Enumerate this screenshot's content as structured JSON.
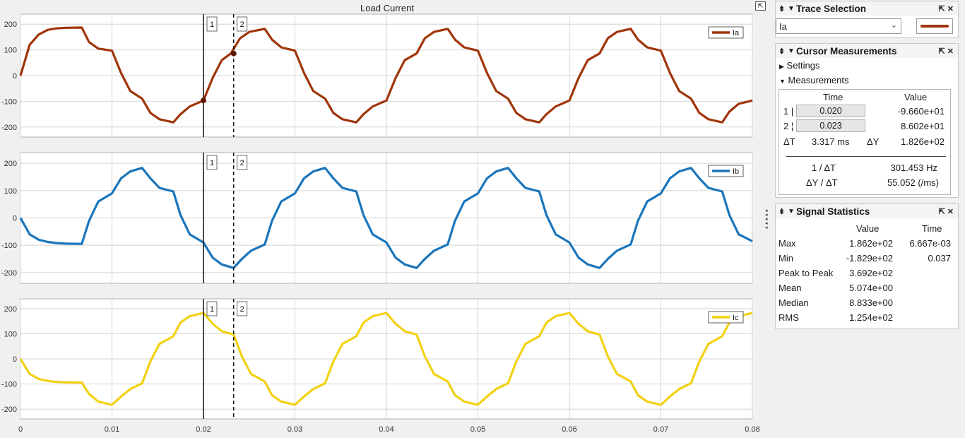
{
  "window": {
    "title": "Load Current"
  },
  "chart_data": [
    {
      "type": "line",
      "title": "Load Current",
      "series": [
        {
          "name": "Ia",
          "color": "#a0350a",
          "x": [
            0,
            0.001,
            0.002,
            0.003,
            0.004,
            0.005,
            0.0067,
            0.0075,
            0.0085,
            0.01,
            0.011,
            0.012,
            0.0133,
            0.0142,
            0.0152,
            0.0167,
            0.0175,
            0.0185,
            0.02,
            0.021,
            0.022,
            0.023,
            0.024,
            0.025,
            0.0267,
            0.0275,
            0.0285,
            0.03,
            0.031,
            0.032,
            0.0333,
            0.0342,
            0.0352,
            0.0367,
            0.0375,
            0.0385,
            0.04,
            0.041,
            0.042,
            0.0433,
            0.0442,
            0.0452,
            0.0467,
            0.0475,
            0.0485,
            0.05,
            0.051,
            0.052,
            0.0533,
            0.0542,
            0.0552,
            0.0567,
            0.0575,
            0.0585,
            0.06,
            0.061,
            0.062,
            0.0633,
            0.0642,
            0.0652,
            0.0667,
            0.0675,
            0.0685,
            0.07,
            0.071,
            0.072,
            0.0733,
            0.0742,
            0.0752,
            0.0767,
            0.0775,
            0.0785,
            0.08
          ],
          "y": [
            0,
            120,
            160,
            178,
            184,
            186,
            187,
            130,
            105,
            97,
            10,
            -60,
            -90,
            -145,
            -170,
            -182,
            -150,
            -120,
            -97,
            -10,
            60,
            86,
            145,
            170,
            182,
            140,
            110,
            97,
            10,
            -60,
            -90,
            -145,
            -170,
            -182,
            -150,
            -120,
            -97,
            -10,
            60,
            86,
            145,
            170,
            182,
            140,
            110,
            97,
            10,
            -60,
            -90,
            -145,
            -170,
            -182,
            -150,
            -120,
            -97,
            -10,
            60,
            86,
            145,
            170,
            182,
            140,
            110,
            97,
            10,
            -60,
            -90,
            -145,
            -170,
            -182,
            -140,
            -110,
            -97
          ]
        }
      ],
      "ylim": [
        -220,
        220
      ],
      "yticks": [
        -200,
        -100,
        0,
        100,
        200
      ]
    },
    {
      "type": "line",
      "series": [
        {
          "name": "Ib",
          "color": "#1a75bb",
          "x": [
            0,
            0.001,
            0.002,
            0.003,
            0.004,
            0.005,
            0.0067,
            0.0075,
            0.0085,
            0.01,
            0.011,
            0.012,
            0.0133,
            0.0142,
            0.0152,
            0.0167,
            0.0175,
            0.0185,
            0.02,
            0.021,
            0.022,
            0.0233,
            0.0242,
            0.0252,
            0.0267,
            0.0275,
            0.0285,
            0.03,
            0.031,
            0.032,
            0.0333,
            0.0342,
            0.0352,
            0.0367,
            0.0375,
            0.0385,
            0.04,
            0.041,
            0.042,
            0.0433,
            0.0442,
            0.0452,
            0.0467,
            0.0475,
            0.0485,
            0.05,
            0.051,
            0.052,
            0.0533,
            0.0542,
            0.0552,
            0.0567,
            0.0575,
            0.0585,
            0.06,
            0.061,
            0.062,
            0.0633,
            0.0642,
            0.0652,
            0.0667,
            0.0675,
            0.0685,
            0.07,
            0.071,
            0.072,
            0.0733,
            0.0742,
            0.0752,
            0.0767,
            0.0775,
            0.0785,
            0.08
          ],
          "y": [
            0,
            -60,
            -80,
            -88,
            -92,
            -94,
            -95,
            -10,
            60,
            90,
            145,
            170,
            183,
            145,
            110,
            97,
            10,
            -60,
            -90,
            -145,
            -170,
            -183,
            -150,
            -120,
            -97,
            -10,
            60,
            90,
            145,
            170,
            183,
            145,
            110,
            97,
            10,
            -60,
            -90,
            -145,
            -170,
            -183,
            -150,
            -120,
            -97,
            -10,
            60,
            90,
            145,
            170,
            183,
            145,
            110,
            97,
            10,
            -60,
            -90,
            -145,
            -170,
            -183,
            -150,
            -120,
            -97,
            -10,
            60,
            90,
            145,
            170,
            183,
            145,
            110,
            97,
            10,
            -60,
            -85
          ]
        }
      ],
      "ylim": [
        -220,
        220
      ],
      "yticks": [
        -200,
        -100,
        0,
        100,
        200
      ]
    },
    {
      "type": "line",
      "series": [
        {
          "name": "Ic",
          "color": "#f2d113",
          "x": [
            0,
            0.001,
            0.002,
            0.003,
            0.004,
            0.005,
            0.0067,
            0.0075,
            0.0085,
            0.01,
            0.011,
            0.012,
            0.0133,
            0.0142,
            0.0152,
            0.0167,
            0.0175,
            0.0185,
            0.02,
            0.021,
            0.022,
            0.0233,
            0.0242,
            0.0252,
            0.0267,
            0.0275,
            0.0285,
            0.03,
            0.031,
            0.032,
            0.0333,
            0.0342,
            0.0352,
            0.0367,
            0.0375,
            0.0385,
            0.04,
            0.041,
            0.042,
            0.0433,
            0.0442,
            0.0452,
            0.0467,
            0.0475,
            0.0485,
            0.05,
            0.051,
            0.052,
            0.0533,
            0.0542,
            0.0552,
            0.0567,
            0.0575,
            0.0585,
            0.06,
            0.061,
            0.062,
            0.0633,
            0.0642,
            0.0652,
            0.0667,
            0.0675,
            0.0685,
            0.07,
            0.071,
            0.072,
            0.0733,
            0.0742,
            0.0752,
            0.0767,
            0.0775,
            0.0785,
            0.08
          ],
          "y": [
            0,
            -60,
            -80,
            -88,
            -92,
            -93,
            -94,
            -140,
            -170,
            -183,
            -150,
            -120,
            -97,
            -10,
            60,
            90,
            145,
            170,
            183,
            140,
            110,
            97,
            10,
            -60,
            -90,
            -145,
            -170,
            -183,
            -150,
            -120,
            -97,
            -10,
            60,
            90,
            145,
            170,
            183,
            140,
            110,
            97,
            10,
            -60,
            -90,
            -145,
            -170,
            -183,
            -150,
            -120,
            -97,
            -10,
            60,
            90,
            145,
            170,
            183,
            140,
            110,
            97,
            10,
            -60,
            -90,
            -145,
            -170,
            -183,
            -150,
            -120,
            -97,
            -10,
            60,
            90,
            145,
            170,
            183
          ]
        }
      ],
      "ylim": [
        -220,
        220
      ],
      "yticks": [
        -200,
        -100,
        0,
        100,
        200
      ]
    }
  ],
  "xaxis": {
    "xlim": [
      0,
      0.08
    ],
    "ticks": [
      "0",
      "0.01",
      "0.02",
      "0.03",
      "0.04",
      "0.05",
      "0.06",
      "0.07",
      "0.08"
    ],
    "tick_values": [
      0,
      0.01,
      0.02,
      0.03,
      0.04,
      0.05,
      0.06,
      0.07,
      0.08
    ]
  },
  "cursors": [
    {
      "label": "1",
      "time": 0.02,
      "style": "solid"
    },
    {
      "label": "2",
      "time": 0.0233,
      "style": "dashed"
    }
  ],
  "trace_selection": {
    "title": "Trace Selection",
    "selected": "Ia",
    "line_color": "#a0350a"
  },
  "cursor_measurements": {
    "title": "Cursor Measurements",
    "settings_label": "Settings",
    "measurements_label": "Measurements",
    "col_time": "Time",
    "col_value": "Value",
    "row1_label": "1",
    "row1_time": "0.020",
    "row1_value": "-9.660e+01",
    "row2_label": "2",
    "row2_time": "0.023",
    "row2_value": "8.602e+01",
    "dt_label": "ΔT",
    "dt_value": "3.317 ms",
    "dy_label": "ΔY",
    "dy_value": "1.826e+02",
    "inv_dt_label": "1 / ΔT",
    "inv_dt_value": "301.453 Hz",
    "dy_dt_label": "ΔY / ΔT",
    "dy_dt_value": "55.052 (/ms)"
  },
  "signal_statistics": {
    "title": "Signal Statistics",
    "col_value": "Value",
    "col_time": "Time",
    "rows": [
      {
        "label": "Max",
        "value": "1.862e+02",
        "time": "6.667e-03"
      },
      {
        "label": "Min",
        "value": "-1.829e+02",
        "time": "0.037"
      },
      {
        "label": "Peak to Peak",
        "value": "3.692e+02",
        "time": ""
      },
      {
        "label": "Mean",
        "value": "5.074e+00",
        "time": ""
      },
      {
        "label": "Median",
        "value": "8.833e+00",
        "time": ""
      },
      {
        "label": "RMS",
        "value": "1.254e+02",
        "time": ""
      }
    ]
  }
}
